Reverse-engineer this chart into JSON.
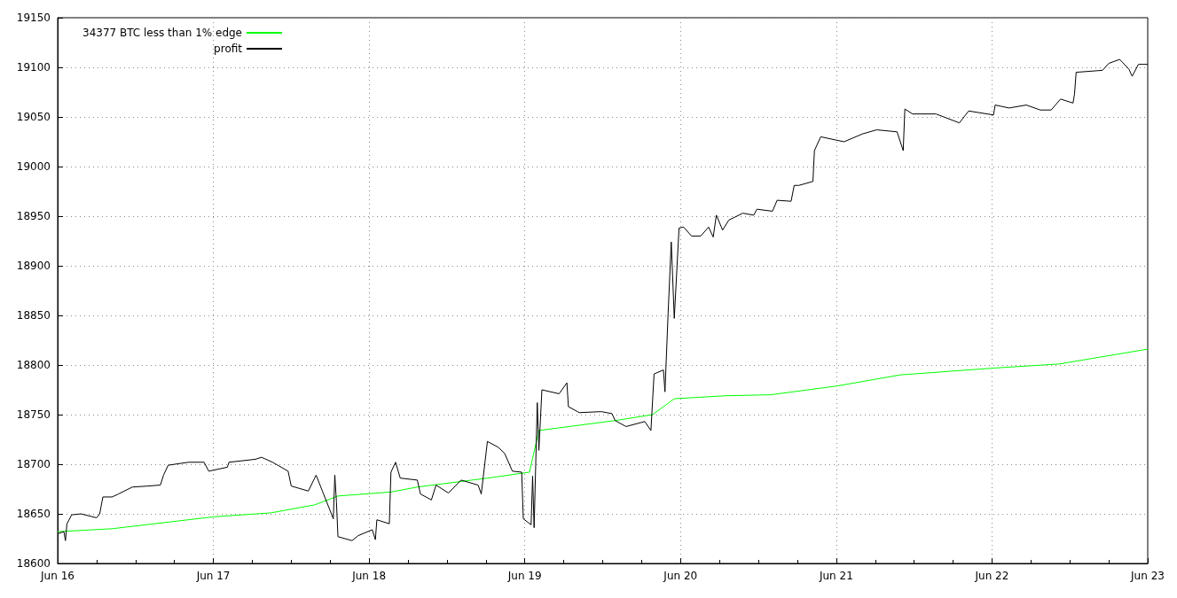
{
  "chart_data": {
    "type": "line",
    "xlim": [
      "--06-16",
      "--06-23"
    ],
    "xticks": [
      {
        "value": "--06-16",
        "label": "Jun 16"
      },
      {
        "value": "--06-16T06:00",
        "label": null
      },
      {
        "value": "--06-16T12:00",
        "label": null
      },
      {
        "value": "--06-16T18:00",
        "label": null
      },
      {
        "value": "--06-17",
        "label": "Jun 17"
      },
      {
        "value": "--06-17T06:00",
        "label": null
      },
      {
        "value": "--06-17T12:00",
        "label": null
      },
      {
        "value": "--06-17T18:00",
        "label": null
      },
      {
        "value": "--06-18",
        "label": "Jun 18"
      },
      {
        "value": "--06-18T06:00",
        "label": null
      },
      {
        "value": "--06-18T12:00",
        "label": null
      },
      {
        "value": "--06-18T18:00",
        "label": null
      },
      {
        "value": "--06-19",
        "label": "Jun 19"
      },
      {
        "value": "--06-19T06:00",
        "label": null
      },
      {
        "value": "--06-19T12:00",
        "label": null
      },
      {
        "value": "--06-19T18:00",
        "label": null
      },
      {
        "value": "--06-20",
        "label": "Jun 20"
      },
      {
        "value": "--06-20T06:00",
        "label": null
      },
      {
        "value": "--06-20T12:00",
        "label": null
      },
      {
        "value": "--06-20T18:00",
        "label": null
      },
      {
        "value": "--06-21",
        "label": "Jun 21"
      },
      {
        "value": "--06-21T06:00",
        "label": null
      },
      {
        "value": "--06-21T12:00",
        "label": null
      },
      {
        "value": "--06-21T18:00",
        "label": null
      },
      {
        "value": "--06-22",
        "label": "Jun 22"
      },
      {
        "value": "--06-22T06:00",
        "label": null
      },
      {
        "value": "--06-22T12:00",
        "label": null
      },
      {
        "value": "--06-22T18:00",
        "label": null
      },
      {
        "value": "--06-23",
        "label": "Jun 23"
      }
    ],
    "ylim": [
      18600,
      19150
    ],
    "yticks": [
      18600,
      18650,
      18700,
      18750,
      18800,
      18850,
      18900,
      18950,
      19000,
      19050,
      19100,
      19150
    ],
    "grid": true,
    "legend": "top left",
    "line_style": "solid",
    "series": [
      {
        "name": "34377 BTC less than 1% edge",
        "color": "#00ff00",
        "x": [
          "--06-16T00:00",
          "--06-16T08:24",
          "--06-17T00:00",
          "--06-17T08:53",
          "--06-17T15:36",
          "--06-17T19:12",
          "--06-18T03:22",
          "--06-18T07:26",
          "--06-18T18:14",
          "--06-19T00:43",
          "--06-19T02:10",
          "--06-19T13:55",
          "--06-19T19:41",
          "--06-19T23:02",
          "--06-20T06:58",
          "--06-20T13:55",
          "--06-21T00:14",
          "--06-21T09:50",
          "--06-22T00:29",
          "--06-22T10:19",
          "--06-23T00:00"
        ],
        "values": [
          18632,
          18635,
          18647,
          18651,
          18659,
          18668,
          18672,
          18677,
          18686,
          18692,
          18734,
          18744,
          18750,
          18766,
          18769,
          18770,
          18779,
          18790,
          18797,
          18801,
          18816
        ]
      },
      {
        "name": "profit",
        "color": "#000000",
        "x": [
          "--06-16T00:00",
          "--06-16T00:58",
          "--06-16T01:12",
          "--06-16T01:26",
          "--06-16T02:10",
          "--06-16T03:36",
          "--06-16T06:00",
          "--06-16T06:29",
          "--06-16T06:58",
          "--06-16T08:24",
          "--06-16T09:22",
          "--06-16T11:31",
          "--06-16T13:55",
          "--06-16T15:50",
          "--06-16T16:19",
          "--06-16T17:02",
          "--06-16T20:10",
          "--06-16T22:34",
          "--06-16T23:17",
          "--06-17T02:10",
          "--06-17T02:24",
          "--06-17T06:29",
          "--06-17T07:26",
          "--06-17T09:07",
          "--06-17T11:31",
          "--06-17T12:00",
          "--06-17T14:38",
          "--06-17T15:50",
          "--06-17T16:48",
          "--06-17T18:29",
          "--06-17T18:43",
          "--06-17T18:58",
          "--06-17T19:12",
          "--06-17T21:22",
          "--06-17T22:19",
          "--06-18T00:29",
          "--06-18T00:58",
          "--06-18T01:12",
          "--06-18T03:07",
          "--06-18T03:22",
          "--06-18T04:05",
          "--06-18T04:48",
          "--06-18T07:26",
          "--06-18T07:55",
          "--06-18T09:36",
          "--06-18T10:19",
          "--06-18T12:14",
          "--06-18T14:10",
          "--06-18T16:48",
          "--06-18T17:17",
          "--06-18T18:14",
          "--06-18T19:55",
          "--06-18T20:53",
          "--06-18T22:05",
          "--06-18T23:31",
          "--06-18T23:46",
          "--06-19T00:58",
          "--06-19T01:12",
          "--06-19T01:26",
          "--06-19T01:55",
          "--06-19T02:10",
          "--06-19T02:38",
          "--06-19T05:17",
          "--06-19T06:29",
          "--06-19T06:43",
          "--06-19T08:24",
          "--06-19T11:46",
          "--06-19T13:26",
          "--06-19T13:55",
          "--06-19T15:36",
          "--06-19T18:29",
          "--06-19T19:26",
          "--06-19T19:55",
          "--06-19T21:22",
          "--06-19T21:36",
          "--06-19T22:05",
          "--06-19T22:34",
          "--06-19T23:02",
          "--06-19T23:46",
          "--06-20T00:29",
          "--06-20T01:41",
          "--06-20T03:07",
          "--06-20T04:19",
          "--06-20T05:02",
          "--06-20T05:31",
          "--06-20T06:29",
          "--06-20T07:26",
          "--06-20T09:36",
          "--06-20T11:17",
          "--06-20T11:46",
          "--06-20T14:10",
          "--06-20T14:53",
          "--06-20T17:02",
          "--06-20T17:31",
          "--06-20T18:14",
          "--06-20T20:24",
          "--06-20T20:38",
          "--06-20T21:36",
          "--06-21T01:12",
          "--06-21T04:05",
          "--06-21T06:14",
          "--06-21T09:22",
          "--06-21T10:19",
          "--06-21T10:34",
          "--06-21T11:46",
          "--06-21T15:22",
          "--06-21T18:58",
          "--06-21T20:24",
          "--06-22T00:14",
          "--06-22T00:29",
          "--06-22T02:38",
          "--06-22T05:17",
          "--06-22T07:26",
          "--06-22T09:07",
          "--06-22T10:34",
          "--06-22T12:29",
          "--06-22T12:43",
          "--06-22T12:58",
          "--06-22T17:02",
          "--06-22T18:00",
          "--06-22T19:41",
          "--06-22T21:07",
          "--06-22T21:36",
          "--06-22T22:34",
          "--06-23T00:00"
        ],
        "values": [
          18630,
          18632,
          18623,
          18640,
          18649,
          18650,
          18646,
          18650,
          18667,
          18667,
          18670,
          18677,
          18678,
          18679,
          18689,
          18699,
          18702,
          18702,
          18693,
          18697,
          18702,
          18705,
          18707,
          18702,
          18693,
          18678,
          18673,
          18689,
          18673,
          18645,
          18689,
          18662,
          18627,
          18623,
          18628,
          18634,
          18624,
          18644,
          18640,
          18692,
          18702,
          18686,
          18684,
          18670,
          18664,
          18679,
          18671,
          18684,
          18679,
          18670,
          18723,
          18717,
          18711,
          18693,
          18692,
          18645,
          18639,
          18688,
          18636,
          18762,
          18714,
          18775,
          18771,
          18782,
          18758,
          18752,
          18753,
          18751,
          18744,
          18738,
          18743,
          18734,
          18791,
          18795,
          18773,
          18852,
          18924,
          18847,
          18938,
          18939,
          18930,
          18930,
          18939,
          18929,
          18951,
          18936,
          18946,
          18953,
          18951,
          18957,
          18955,
          18966,
          18965,
          18981,
          18981,
          18985,
          19016,
          19030,
          19025,
          19033,
          19037,
          19035,
          19016,
          19058,
          19053,
          19053,
          19044,
          19056,
          19052,
          19062,
          19059,
          19062,
          19057,
          19057,
          19068,
          19064,
          19073,
          19095,
          19097,
          19104,
          19108,
          19098,
          19091,
          19103,
          19103
        ]
      }
    ]
  }
}
